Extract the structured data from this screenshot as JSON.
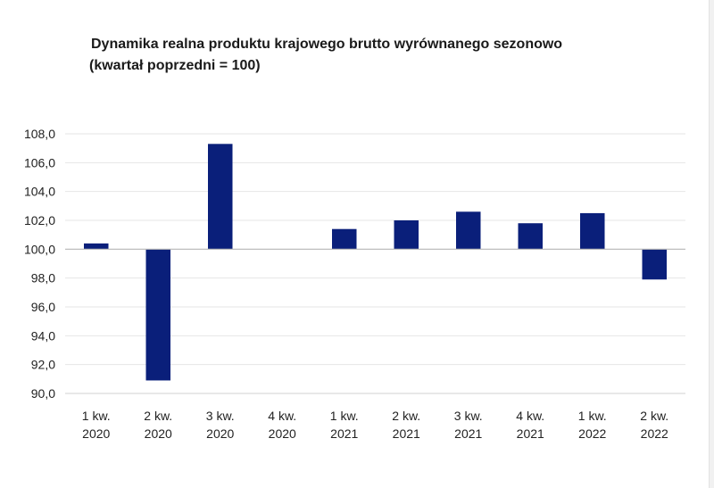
{
  "title": {
    "line1": "Dynamika realna produktu krajowego brutto wyrównanego sezonowo",
    "line2": "(kwartał poprzedni = 100)"
  },
  "chart_data": {
    "type": "bar",
    "title": "Dynamika realna produktu krajowego brutto wyrównanego sezonowo (kwartał poprzedni = 100)",
    "categories": [
      [
        "1 kw.",
        "2020"
      ],
      [
        "2 kw.",
        "2020"
      ],
      [
        "3 kw.",
        "2020"
      ],
      [
        "4 kw.",
        "2020"
      ],
      [
        "1 kw.",
        "2021"
      ],
      [
        "2 kw.",
        "2021"
      ],
      [
        "3 kw.",
        "2021"
      ],
      [
        "4 kw.",
        "2021"
      ],
      [
        "1 kw.",
        "2022"
      ],
      [
        "2 kw.",
        "2022"
      ]
    ],
    "values": [
      100.4,
      90.9,
      107.3,
      100.0,
      101.4,
      102.0,
      102.6,
      101.8,
      102.5,
      97.9
    ],
    "baseline": 100,
    "ylim": [
      90,
      108
    ],
    "yticks": [
      "90,0",
      "92,0",
      "94,0",
      "96,0",
      "98,0",
      "100,0",
      "102,0",
      "104,0",
      "106,0",
      "108,0"
    ],
    "grid": true,
    "bar_color": "#0a1f7a",
    "xlabel": "",
    "ylabel": ""
  }
}
